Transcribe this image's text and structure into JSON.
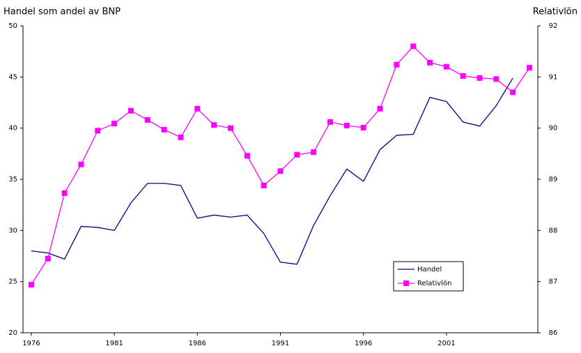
{
  "chart_data": {
    "type": "line",
    "y_label": "Handel som andel av BNP",
    "y2_label": "Relativlön",
    "x": [
      1976,
      1977,
      1978,
      1979,
      1980,
      1981,
      1982,
      1983,
      1984,
      1985,
      1986,
      1987,
      1988,
      1989,
      1990,
      1991,
      1992,
      1993,
      1994,
      1995,
      1996,
      1997,
      1998,
      1999,
      2000,
      2001,
      2002,
      2003,
      2004,
      2005,
      2006
    ],
    "xlim": [
      1975.5,
      2006.5
    ],
    "xticks": [
      1976,
      1981,
      1986,
      1991,
      1996,
      2001
    ],
    "ylim": [
      20,
      50
    ],
    "yticks": [
      20,
      25,
      30,
      35,
      40,
      45,
      50
    ],
    "y2lim": [
      86,
      92
    ],
    "y2ticks": [
      86,
      87,
      88,
      89,
      90,
      91,
      92
    ],
    "legend": "lower-right",
    "series": [
      {
        "name": "Handel",
        "color": "#000080",
        "marker": false,
        "values": [
          28.0,
          27.8,
          27.2,
          30.4,
          30.3,
          30.0,
          32.7,
          34.6,
          34.6,
          34.4,
          31.2,
          31.5,
          31.3,
          31.5,
          29.7,
          26.9,
          26.7,
          30.5,
          33.4,
          36.0,
          34.8,
          37.9,
          39.3,
          39.4,
          43.0,
          42.6,
          40.6,
          40.2,
          42.2,
          44.9,
          null
        ]
      },
      {
        "name": "Relativlön",
        "color": "#ff00ff",
        "marker": true,
        "axis": "y2",
        "values": [
          86.94,
          87.45,
          88.73,
          89.29,
          89.95,
          90.09,
          90.34,
          90.16,
          89.97,
          89.82,
          90.38,
          90.06,
          90.0,
          89.46,
          88.88,
          89.16,
          89.48,
          89.53,
          90.12,
          90.05,
          90.01,
          90.38,
          91.24,
          91.6,
          91.28,
          91.2,
          91.02,
          90.98,
          90.96,
          90.7,
          91.18
        ]
      }
    ]
  }
}
